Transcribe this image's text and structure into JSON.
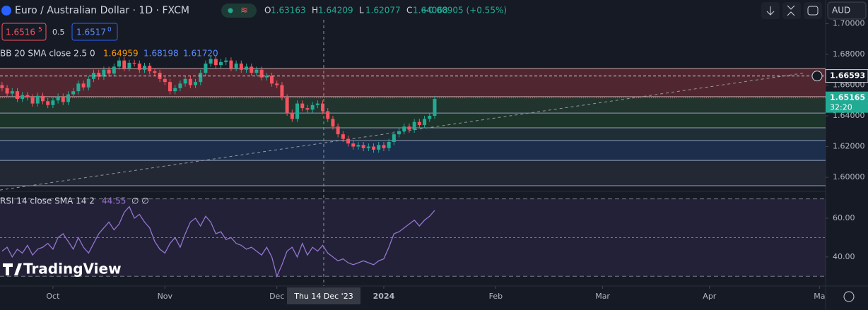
{
  "toolbar": {
    "symbol": "Euro / Australian Dollar · 1D · FXCM",
    "ohlc": [
      {
        "key": "O",
        "text": "1.63163"
      },
      {
        "key": "H",
        "text": "1.64209"
      },
      {
        "key": "L",
        "text": "1.62077"
      },
      {
        "key": "C",
        "text": "1.64068"
      }
    ],
    "change": "+0.00905 (+0.55%)",
    "sell": "1.6516",
    "sell_small": "5",
    "spread": "0.5",
    "buy": "1.6517",
    "buy_small": "0",
    "currency": "AUD",
    "logo": "TradingView"
  },
  "chart_data": {
    "type": "candlestick",
    "open": [
      1.66,
      1.658,
      1.6545,
      1.656,
      1.651,
      1.6535,
      1.652,
      1.648,
      1.653,
      1.6495,
      1.647,
      1.65,
      1.6525,
      1.649,
      1.654,
      1.656,
      1.661,
      1.6585,
      1.664,
      1.668,
      1.6655,
      1.67,
      1.6675,
      1.672,
      1.676,
      1.671,
      1.6745,
      1.674,
      1.67,
      1.6725,
      1.669,
      1.668,
      1.664,
      1.662,
      1.656,
      1.658,
      1.661,
      1.664,
      1.66,
      1.662,
      1.668,
      1.674,
      1.677,
      1.673,
      1.675,
      1.676,
      1.671,
      1.674,
      1.67,
      1.672,
      1.668,
      1.67,
      1.665,
      1.666,
      1.661,
      1.66,
      1.652,
      1.642,
      1.638,
      1.648,
      1.645,
      1.644,
      1.647,
      1.648,
      1.643,
      1.638,
      1.633,
      1.628,
      1.625,
      1.622,
      1.62,
      1.621,
      1.619,
      1.62,
      1.618,
      1.621,
      1.619,
      1.623,
      1.628,
      1.63,
      1.633,
      1.631,
      1.636,
      1.634,
      1.638,
      1.64
    ],
    "high": [
      1.662,
      1.66,
      1.658,
      1.658,
      1.6555,
      1.6555,
      1.654,
      1.655,
      1.655,
      1.6515,
      1.652,
      1.6545,
      1.6545,
      1.656,
      1.658,
      1.663,
      1.663,
      1.666,
      1.67,
      1.67,
      1.672,
      1.672,
      1.674,
      1.678,
      1.678,
      1.6765,
      1.6765,
      1.676,
      1.6745,
      1.6745,
      1.671,
      1.67,
      1.666,
      1.664,
      1.66,
      1.663,
      1.666,
      1.666,
      1.664,
      1.67,
      1.676,
      1.679,
      1.679,
      1.677,
      1.678,
      1.678,
      1.676,
      1.676,
      1.674,
      1.674,
      1.672,
      1.672,
      1.668,
      1.668,
      1.663,
      1.662,
      1.654,
      1.644,
      1.65,
      1.65,
      1.647,
      1.649,
      1.65,
      1.65,
      1.645,
      1.64,
      1.635,
      1.63,
      1.627,
      1.624,
      1.623,
      1.623,
      1.622,
      1.622,
      1.623,
      1.623,
      1.625,
      1.63,
      1.632,
      1.635,
      1.635,
      1.638,
      1.638,
      1.64,
      1.642,
      1.653
    ],
    "low": [
      1.656,
      1.6525,
      1.6525,
      1.649,
      1.649,
      1.65,
      1.646,
      1.646,
      1.6475,
      1.645,
      1.645,
      1.648,
      1.647,
      1.647,
      1.652,
      1.654,
      1.6565,
      1.6565,
      1.662,
      1.6635,
      1.6635,
      1.6655,
      1.6655,
      1.67,
      1.669,
      1.669,
      1.672,
      1.668,
      1.668,
      1.667,
      1.666,
      1.662,
      1.66,
      1.654,
      1.654,
      1.656,
      1.659,
      1.658,
      1.658,
      1.66,
      1.666,
      1.672,
      1.671,
      1.671,
      1.673,
      1.669,
      1.669,
      1.668,
      1.668,
      1.666,
      1.666,
      1.663,
      1.663,
      1.659,
      1.658,
      1.65,
      1.64,
      1.636,
      1.636,
      1.643,
      1.642,
      1.642,
      1.645,
      1.641,
      1.636,
      1.631,
      1.626,
      1.623,
      1.62,
      1.618,
      1.618,
      1.617,
      1.617,
      1.616,
      1.616,
      1.617,
      1.617,
      1.621,
      1.626,
      1.628,
      1.629,
      1.629,
      1.632,
      1.632,
      1.636,
      1.638
    ],
    "close": [
      1.658,
      1.6545,
      1.656,
      1.651,
      1.6535,
      1.652,
      1.648,
      1.653,
      1.6495,
      1.647,
      1.65,
      1.6525,
      1.649,
      1.654,
      1.656,
      1.661,
      1.6585,
      1.664,
      1.668,
      1.6655,
      1.67,
      1.6675,
      1.672,
      1.676,
      1.671,
      1.6745,
      1.674,
      1.67,
      1.6725,
      1.669,
      1.668,
      1.664,
      1.662,
      1.656,
      1.658,
      1.661,
      1.664,
      1.66,
      1.662,
      1.668,
      1.674,
      1.677,
      1.673,
      1.675,
      1.676,
      1.671,
      1.674,
      1.67,
      1.672,
      1.668,
      1.67,
      1.665,
      1.666,
      1.661,
      1.66,
      1.652,
      1.642,
      1.638,
      1.648,
      1.645,
      1.644,
      1.647,
      1.648,
      1.643,
      1.638,
      1.633,
      1.628,
      1.625,
      1.622,
      1.62,
      1.621,
      1.619,
      1.62,
      1.618,
      1.621,
      1.619,
      1.623,
      1.628,
      1.63,
      1.633,
      1.631,
      1.636,
      1.634,
      1.638,
      1.64,
      1.651
    ],
    "up_color": "#22ab94",
    "down_color": "#f7525f",
    "xlim": [
      -0.4,
      161.8
    ],
    "xticks": [
      {
        "value": 10,
        "label": "Oct"
      },
      {
        "value": 32,
        "label": "Nov"
      },
      {
        "value": 54,
        "label": "Dec"
      },
      {
        "value": 75,
        "label": "2024"
      },
      {
        "value": 97,
        "label": "Feb"
      },
      {
        "value": 118,
        "label": "Mar"
      },
      {
        "value": 139,
        "label": "Apr"
      },
      {
        "value": 160.6,
        "label": "Ma"
      }
    ],
    "ylim": [
      1.5913,
      1.7025
    ],
    "yticks": [
      {
        "value": 1.6,
        "label": "1.60000"
      },
      {
        "value": 1.62,
        "label": "1.62000"
      },
      {
        "value": 1.64,
        "label": "1.64000"
      },
      {
        "value": 1.66,
        "label": "1.66000"
      },
      {
        "value": 1.68,
        "label": "1.68000"
      },
      {
        "value": 1.7,
        "label": "1.70000"
      }
    ],
    "zones": {
      "levels": [
        1.6708,
        1.6525,
        1.6418,
        1.6322,
        1.6239,
        1.611,
        1.5945
      ],
      "colors": [
        "#5a2a33",
        "#243a30",
        "#1f3a2c",
        "#213238",
        "#1d3352",
        "#262b38"
      ]
    },
    "trendline": {
      "x": [
        -0.4,
        157.9
      ],
      "y": [
        1.5917,
        1.668
      ]
    },
    "price_labels": [
      {
        "value": 1.66593,
        "label": "1.66593"
      },
      {
        "value": 1.65165,
        "label": "1.65165",
        "countdown": "32:20"
      }
    ],
    "crosshair": {
      "value": 63.2,
      "label": "Thu 14 Dec '23"
    },
    "bb": {
      "title": "BB 20 SMA close 2.5 0",
      "basis": "1.64959",
      "upper": "1.68198",
      "lower": "1.61720"
    },
    "rsi": {
      "title": "RSI 14 close SMA 14 2",
      "last": "44.55",
      "extra": "∅ ∅",
      "color": "#9575cd",
      "values": [
        43,
        45,
        40,
        44,
        42,
        46,
        41,
        44,
        45,
        47,
        44,
        50,
        52,
        48,
        44,
        50,
        45,
        42,
        47,
        52,
        55,
        58,
        54,
        57,
        63,
        66,
        60,
        62,
        58,
        55,
        48,
        44,
        42,
        47,
        50,
        45,
        52,
        58,
        60,
        56,
        61,
        58,
        52,
        53,
        49,
        50,
        47,
        46,
        44,
        45,
        43,
        41,
        45,
        40,
        30,
        36,
        43,
        45,
        40,
        47,
        41,
        45,
        43,
        46,
        42,
        40,
        38,
        39,
        37,
        36,
        37,
        38,
        37,
        36,
        38,
        39,
        45,
        52,
        53,
        55,
        57,
        59,
        56,
        59,
        61,
        64
      ],
      "ylim": [
        25,
        73.5
      ],
      "yticks": [
        {
          "value": 40,
          "label": "40.00"
        },
        {
          "value": 60,
          "label": "60.00"
        }
      ],
      "levels": [
        30,
        50,
        70
      ]
    }
  }
}
